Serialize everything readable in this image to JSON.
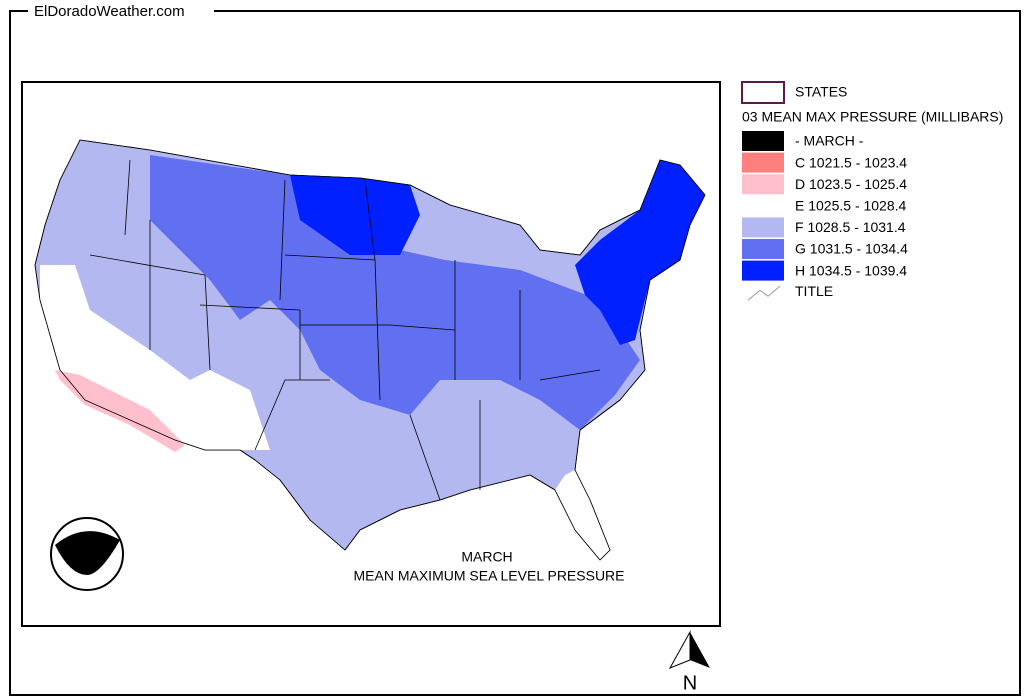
{
  "header": {
    "site": "ElDoradoWeather.com"
  },
  "legend": {
    "states": "STATES",
    "title": "03 MEAN MAX PRESSURE (MILLIBARS)",
    "classes": [
      {
        "label": "- MARCH -",
        "color": "#000000"
      },
      {
        "label": "C 1021.5 - 1023.4",
        "color": "#ff7f7f"
      },
      {
        "label": "D 1023.5 - 1025.4",
        "color": "#ffbfcc"
      },
      {
        "label": "E 1025.5 - 1028.4",
        "color": "#ffffff"
      },
      {
        "label": "F 1028.5 - 1031.4",
        "color": "#b4b8f0"
      },
      {
        "label": "G 1031.5 - 1034.4",
        "color": "#6070f0"
      },
      {
        "label": "H 1034.5 - 1039.4",
        "color": "#0020ff"
      }
    ],
    "title_item": "TITLE"
  },
  "map": {
    "caption": [
      "MARCH",
      "MEAN MAXIMUM SEA LEVEL PRESSURE"
    ],
    "logo": "NOAA",
    "north": "N"
  }
}
